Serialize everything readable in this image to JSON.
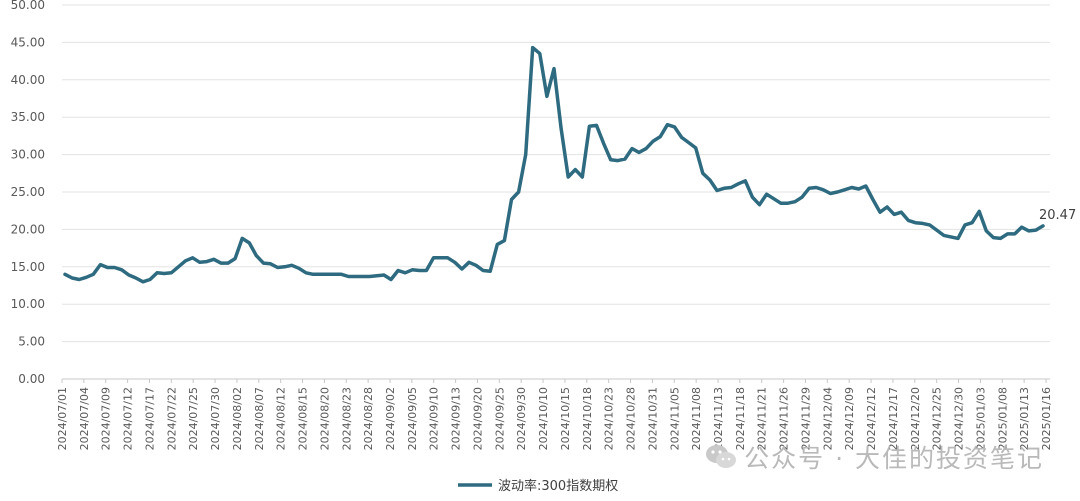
{
  "chart_data": {
    "type": "line",
    "ylim": [
      0,
      50
    ],
    "yticks": [
      "0.00",
      "5.00",
      "10.00",
      "15.00",
      "20.00",
      "25.00",
      "30.00",
      "35.00",
      "40.00",
      "45.00",
      "50.00"
    ],
    "xtick_labels": [
      "2024/07/01",
      "2024/07/04",
      "2024/07/09",
      "2024/07/12",
      "2024/07/17",
      "2024/07/22",
      "2024/07/25",
      "2024/07/30",
      "2024/08/02",
      "2024/08/07",
      "2024/08/12",
      "2024/08/15",
      "2024/08/20",
      "2024/08/23",
      "2024/08/28",
      "2024/09/02",
      "2024/09/05",
      "2024/09/10",
      "2024/09/13",
      "2024/09/20",
      "2024/09/25",
      "2024/09/30",
      "2024/10/10",
      "2024/10/15",
      "2024/10/18",
      "2024/10/23",
      "2024/10/28",
      "2024/10/31",
      "2024/11/05",
      "2024/11/08",
      "2024/11/13",
      "2024/11/18",
      "2024/11/21",
      "2024/11/26",
      "2024/11/29",
      "2024/12/04",
      "2024/12/09",
      "2024/12/12",
      "2024/12/17",
      "2024/12/20",
      "2024/12/25",
      "2024/12/30",
      "2025/01/03",
      "2025/01/08",
      "2025/01/13",
      "2025/01/16"
    ],
    "series": [
      {
        "name": "波动率:300指数期权",
        "color": "#2e6b80",
        "values": [
          14.0,
          13.5,
          13.3,
          13.6,
          14.0,
          15.3,
          14.9,
          14.9,
          14.6,
          13.9,
          13.5,
          13.0,
          13.3,
          14.2,
          14.1,
          14.2,
          15.0,
          15.8,
          16.2,
          15.6,
          15.7,
          16.0,
          15.5,
          15.5,
          16.1,
          18.8,
          18.2,
          16.5,
          15.5,
          15.4,
          14.9,
          15.0,
          15.2,
          14.8,
          14.2,
          14.0,
          14.0,
          14.0,
          14.0,
          14.0,
          13.7,
          13.7,
          13.7,
          13.7,
          13.8,
          13.9,
          13.3,
          14.5,
          14.2,
          14.6,
          14.5,
          14.5,
          16.2,
          16.2,
          16.2,
          15.6,
          14.7,
          15.6,
          15.2,
          14.5,
          14.4,
          18.0,
          18.5,
          24.0,
          25.0,
          30.0,
          44.3,
          43.5,
          37.8,
          41.5,
          33.5,
          27.0,
          28.0,
          27.0,
          33.8,
          33.9,
          31.5,
          29.3,
          29.2,
          29.4,
          30.8,
          30.3,
          30.8,
          31.8,
          32.4,
          34.0,
          33.7,
          32.3,
          31.6,
          30.9,
          27.5,
          26.6,
          25.2,
          25.5,
          25.6,
          26.1,
          26.5,
          24.3,
          23.3,
          24.7,
          24.1,
          23.5,
          23.5,
          23.7,
          24.3,
          25.5,
          25.6,
          25.3,
          24.8,
          25.0,
          25.3,
          25.6,
          25.4,
          25.8,
          24.0,
          22.3,
          23.0,
          22.0,
          22.3,
          21.2,
          20.9,
          20.8,
          20.6,
          19.9,
          19.2,
          19.0,
          18.8,
          20.6,
          20.9,
          22.4,
          19.8,
          18.9,
          18.8,
          19.4,
          19.4,
          20.3,
          19.8,
          19.9,
          20.47
        ]
      }
    ],
    "end_label": "20.47",
    "legend": {
      "label": "波动率:300指数期权",
      "position": "bottom"
    },
    "grid": "horizontal"
  },
  "watermark": {
    "text": "公众号 · 大佳的投资笔记",
    "icon": "wechat-icon"
  }
}
